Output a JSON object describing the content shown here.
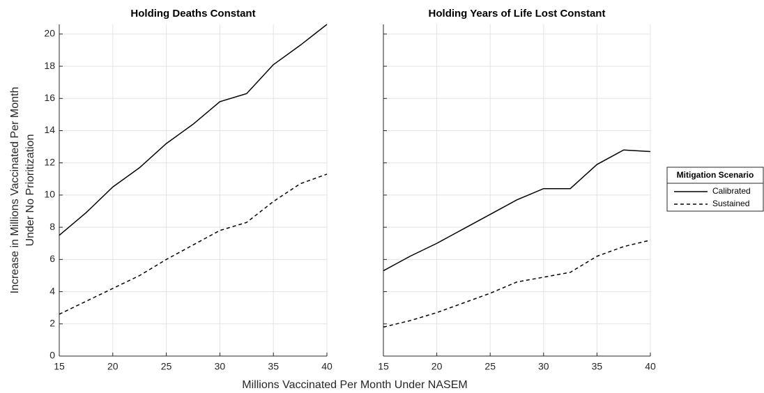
{
  "chart_data": [
    {
      "type": "line",
      "title": "Holding Deaths Constant",
      "x": [
        15,
        17.5,
        20,
        22.5,
        25,
        27.5,
        30,
        32.5,
        35,
        37.5,
        40
      ],
      "series": [
        {
          "name": "Calibrated",
          "color": "#000000",
          "dash": false,
          "values": [
            7.5,
            8.9,
            10.5,
            11.7,
            13.2,
            14.4,
            15.8,
            16.3,
            18.1,
            19.3,
            20.6
          ]
        },
        {
          "name": "Sustained",
          "color": "#000000",
          "dash": true,
          "values": [
            2.6,
            3.4,
            4.2,
            5.0,
            6.0,
            6.9,
            7.8,
            8.3,
            9.6,
            10.7,
            11.3
          ]
        }
      ],
      "xlim": [
        15,
        40
      ],
      "ylim": [
        0,
        20.6
      ],
      "xticks": [
        15,
        20,
        25,
        30,
        35,
        40
      ],
      "yticks": [
        0,
        2,
        4,
        6,
        8,
        10,
        12,
        14,
        16,
        18,
        20
      ],
      "show_ytick_labels": true,
      "grid": true
    },
    {
      "type": "line",
      "title": "Holding Years of Life Lost Constant",
      "x": [
        15,
        17.5,
        20,
        22.5,
        25,
        27.5,
        30,
        32.5,
        35,
        37.5,
        40
      ],
      "series": [
        {
          "name": "Calibrated",
          "color": "#000000",
          "dash": false,
          "values": [
            5.3,
            6.2,
            7.0,
            7.9,
            8.8,
            9.7,
            10.4,
            10.4,
            11.9,
            12.8,
            12.7
          ]
        },
        {
          "name": "Sustained",
          "color": "#000000",
          "dash": true,
          "values": [
            1.8,
            2.2,
            2.7,
            3.3,
            3.9,
            4.6,
            4.9,
            5.2,
            6.2,
            6.8,
            7.2
          ]
        }
      ],
      "xlim": [
        15,
        40
      ],
      "ylim": [
        0,
        20.6
      ],
      "xticks": [
        15,
        20,
        25,
        30,
        35,
        40
      ],
      "yticks": [
        0,
        2,
        4,
        6,
        8,
        10,
        12,
        14,
        16,
        18,
        20
      ],
      "show_ytick_labels": false,
      "grid": true,
      "legend": "outside-right",
      "legend_title": "Mitigation Scenario"
    }
  ],
  "x_label": "Millions Vaccinated Per Month Under NASEM",
  "y_label": [
    "Increase in Millions Vaccinated Per Month",
    "Under No Prioritization"
  ]
}
